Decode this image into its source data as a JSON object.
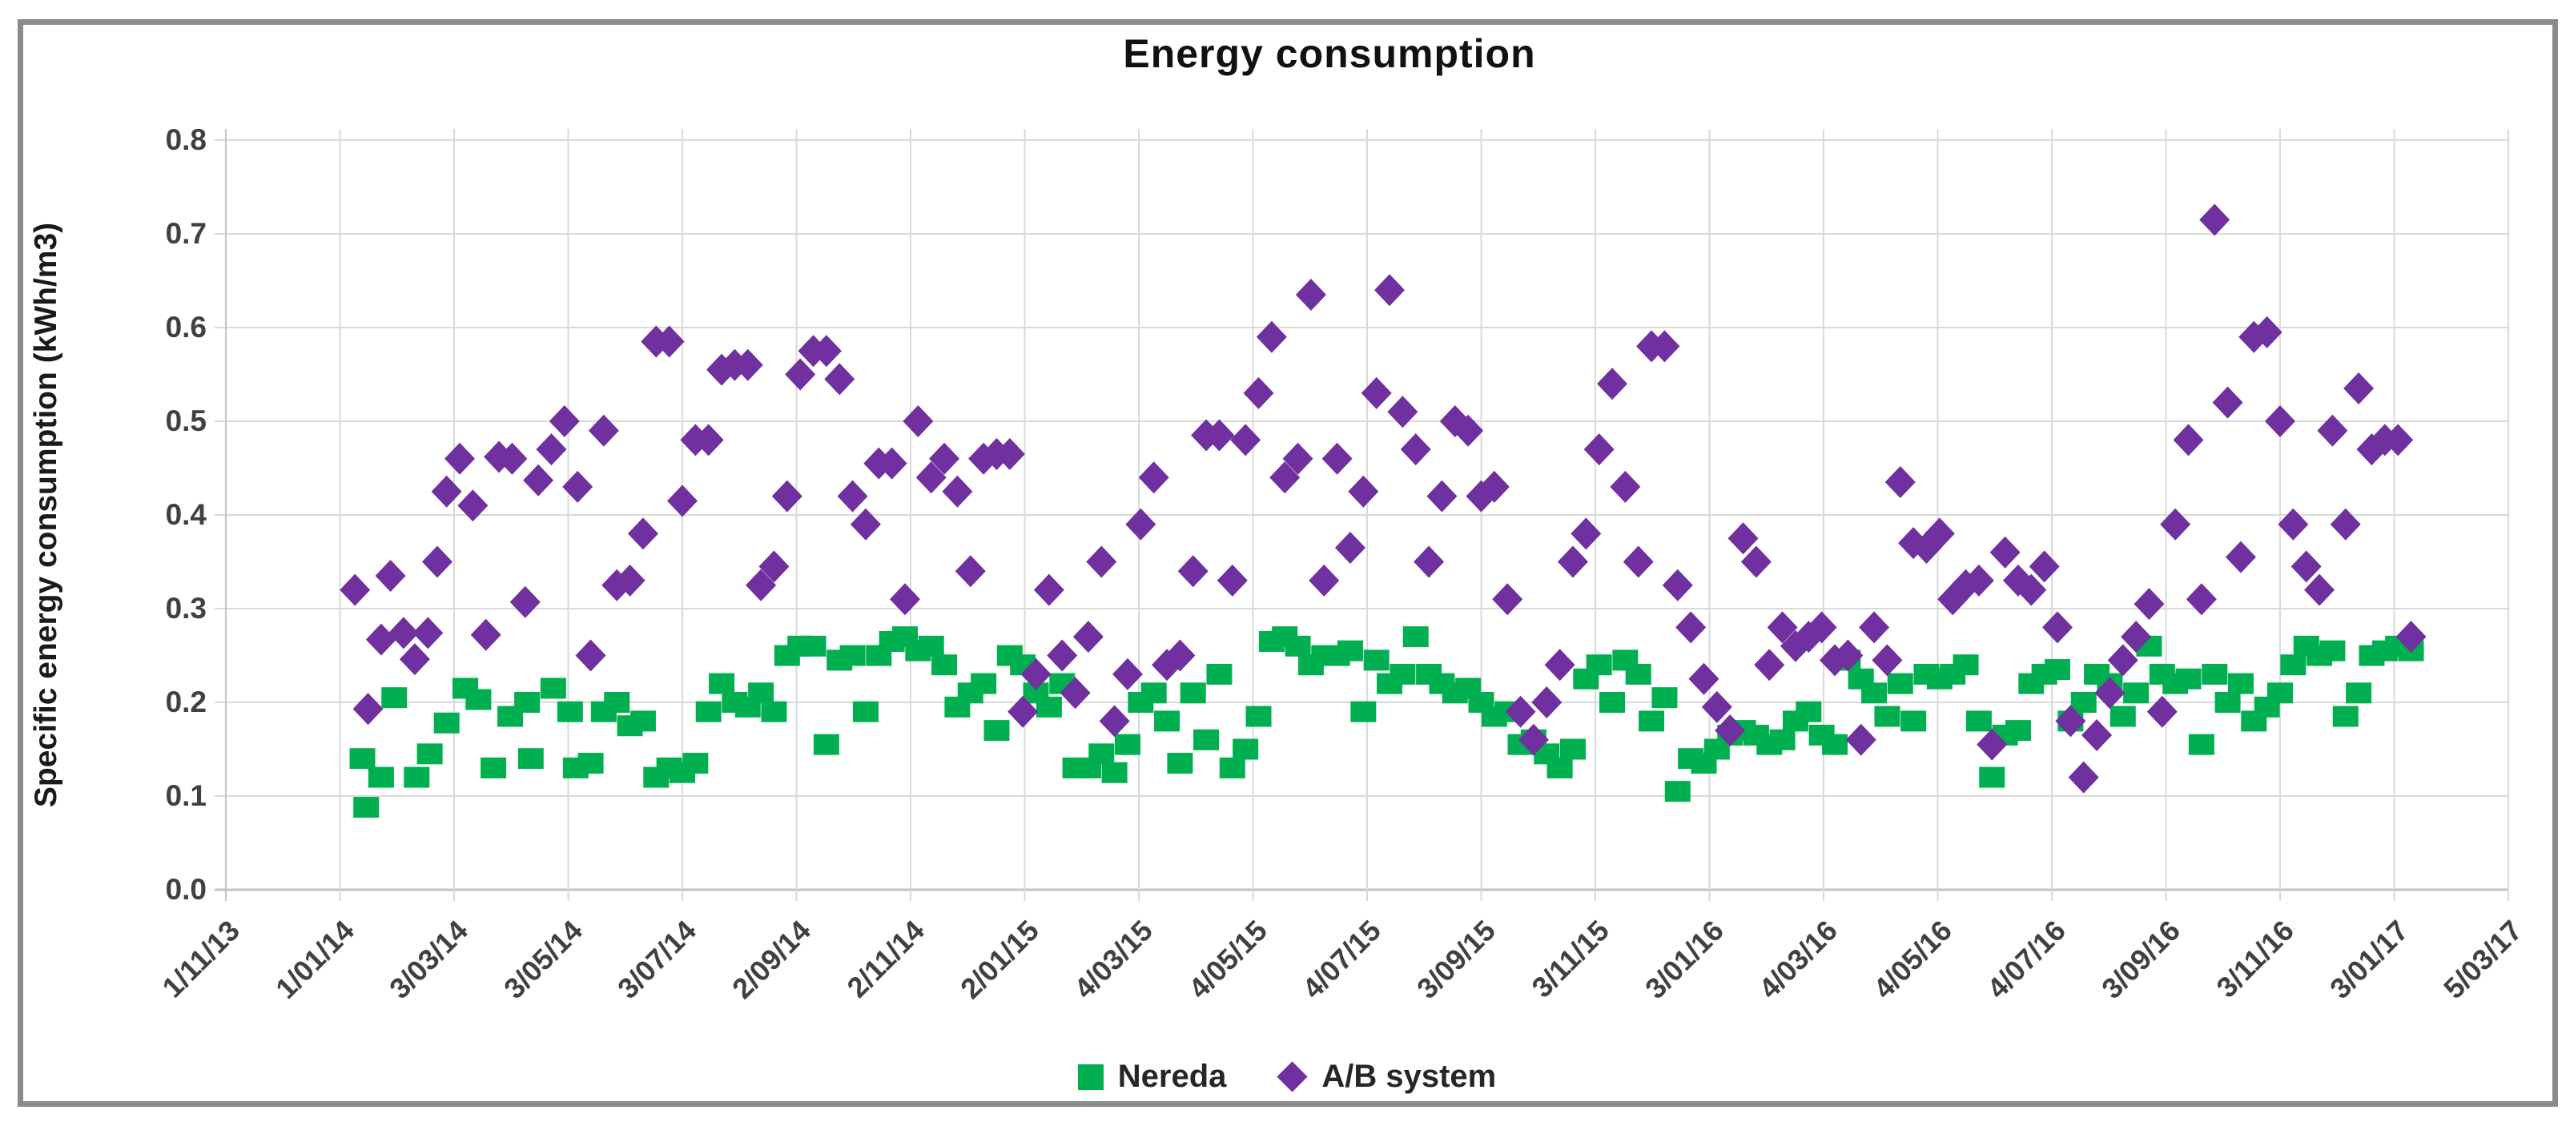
{
  "chart_data": {
    "type": "scatter",
    "title": "Energy consumption",
    "ylabel": "Specific energy consumption (kWh/m3)",
    "xlabel": "",
    "grid": true,
    "legend_position": "bottom",
    "ylim": [
      0.0,
      0.8
    ],
    "y_tick_labels": [
      "0.0",
      "0.1",
      "0.2",
      "0.3",
      "0.4",
      "0.5",
      "0.6",
      "0.7",
      "0.8"
    ],
    "x_tick_labels": [
      "1/11/13",
      "1/01/14",
      "3/03/14",
      "3/05/14",
      "3/07/14",
      "2/09/14",
      "2/11/14",
      "2/01/15",
      "4/03/15",
      "4/05/15",
      "4/07/15",
      "3/09/15",
      "3/11/15",
      "3/01/16",
      "4/03/16",
      "4/05/16",
      "4/07/16",
      "3/09/16",
      "3/11/16",
      "3/01/17",
      "5/03/17"
    ],
    "x_tick_spacing_days": 61,
    "x_axis_unit": "days since 1/11/13",
    "series": [
      {
        "name": "Nereda",
        "marker": "square",
        "color": "#00B050",
        "points": [
          [
            73,
            0.14
          ],
          [
            75,
            0.088
          ],
          [
            83,
            0.12
          ],
          [
            90,
            0.205
          ],
          [
            102,
            0.12
          ],
          [
            109,
            0.145
          ],
          [
            118,
            0.178
          ],
          [
            128,
            0.215
          ],
          [
            135,
            0.203
          ],
          [
            143,
            0.13
          ],
          [
            152,
            0.185
          ],
          [
            161,
            0.2
          ],
          [
            163,
            0.14
          ],
          [
            175,
            0.215
          ],
          [
            184,
            0.19
          ],
          [
            187,
            0.13
          ],
          [
            195,
            0.135
          ],
          [
            202,
            0.19
          ],
          [
            209,
            0.2
          ],
          [
            216,
            0.175
          ],
          [
            223,
            0.18
          ],
          [
            230,
            0.12
          ],
          [
            237,
            0.13
          ],
          [
            244,
            0.125
          ],
          [
            251,
            0.135
          ],
          [
            258,
            0.19
          ],
          [
            265,
            0.22
          ],
          [
            272,
            0.2
          ],
          [
            279,
            0.195
          ],
          [
            286,
            0.21
          ],
          [
            293,
            0.19
          ],
          [
            300,
            0.25
          ],
          [
            307,
            0.26
          ],
          [
            314,
            0.26
          ],
          [
            321,
            0.155
          ],
          [
            328,
            0.245
          ],
          [
            335,
            0.25
          ],
          [
            342,
            0.19
          ],
          [
            349,
            0.25
          ],
          [
            356,
            0.265
          ],
          [
            363,
            0.27
          ],
          [
            370,
            0.255
          ],
          [
            377,
            0.26
          ],
          [
            384,
            0.24
          ],
          [
            391,
            0.195
          ],
          [
            398,
            0.21
          ],
          [
            405,
            0.22
          ],
          [
            412,
            0.17
          ],
          [
            419,
            0.25
          ],
          [
            426,
            0.24
          ],
          [
            433,
            0.21
          ],
          [
            440,
            0.195
          ],
          [
            447,
            0.22
          ],
          [
            454,
            0.13
          ],
          [
            461,
            0.13
          ],
          [
            468,
            0.145
          ],
          [
            475,
            0.125
          ],
          [
            482,
            0.155
          ],
          [
            489,
            0.2
          ],
          [
            496,
            0.21
          ],
          [
            503,
            0.18
          ],
          [
            510,
            0.135
          ],
          [
            517,
            0.21
          ],
          [
            524,
            0.16
          ],
          [
            531,
            0.23
          ],
          [
            538,
            0.13
          ],
          [
            545,
            0.15
          ],
          [
            552,
            0.185
          ],
          [
            559,
            0.265
          ],
          [
            566,
            0.27
          ],
          [
            573,
            0.26
          ],
          [
            580,
            0.24
          ],
          [
            587,
            0.25
          ],
          [
            594,
            0.25
          ],
          [
            601,
            0.255
          ],
          [
            608,
            0.19
          ],
          [
            615,
            0.245
          ],
          [
            622,
            0.22
          ],
          [
            629,
            0.23
          ],
          [
            636,
            0.27
          ],
          [
            643,
            0.23
          ],
          [
            650,
            0.22
          ],
          [
            657,
            0.21
          ],
          [
            664,
            0.215
          ],
          [
            671,
            0.2
          ],
          [
            678,
            0.185
          ],
          [
            685,
            0.19
          ],
          [
            692,
            0.155
          ],
          [
            699,
            0.16
          ],
          [
            706,
            0.145
          ],
          [
            713,
            0.13
          ],
          [
            720,
            0.15
          ],
          [
            727,
            0.225
          ],
          [
            734,
            0.24
          ],
          [
            741,
            0.2
          ],
          [
            748,
            0.245
          ],
          [
            755,
            0.23
          ],
          [
            762,
            0.18
          ],
          [
            769,
            0.205
          ],
          [
            776,
            0.105
          ],
          [
            783,
            0.14
          ],
          [
            790,
            0.135
          ],
          [
            797,
            0.15
          ],
          [
            804,
            0.165
          ],
          [
            811,
            0.17
          ],
          [
            818,
            0.165
          ],
          [
            825,
            0.155
          ],
          [
            832,
            0.16
          ],
          [
            839,
            0.18
          ],
          [
            846,
            0.19
          ],
          [
            853,
            0.165
          ],
          [
            860,
            0.155
          ],
          [
            867,
            0.245
          ],
          [
            874,
            0.225
          ],
          [
            881,
            0.21
          ],
          [
            888,
            0.185
          ],
          [
            895,
            0.22
          ],
          [
            902,
            0.18
          ],
          [
            909,
            0.23
          ],
          [
            916,
            0.225
          ],
          [
            923,
            0.23
          ],
          [
            930,
            0.24
          ],
          [
            937,
            0.18
          ],
          [
            944,
            0.12
          ],
          [
            951,
            0.165
          ],
          [
            958,
            0.17
          ],
          [
            965,
            0.22
          ],
          [
            972,
            0.23
          ],
          [
            979,
            0.235
          ],
          [
            986,
            0.18
          ],
          [
            993,
            0.2
          ],
          [
            1000,
            0.23
          ],
          [
            1007,
            0.22
          ],
          [
            1014,
            0.185
          ],
          [
            1021,
            0.21
          ],
          [
            1028,
            0.26
          ],
          [
            1035,
            0.23
          ],
          [
            1042,
            0.22
          ],
          [
            1049,
            0.225
          ],
          [
            1056,
            0.155
          ],
          [
            1063,
            0.23
          ],
          [
            1070,
            0.2
          ],
          [
            1077,
            0.22
          ],
          [
            1084,
            0.18
          ],
          [
            1091,
            0.195
          ],
          [
            1098,
            0.21
          ],
          [
            1105,
            0.24
          ],
          [
            1112,
            0.26
          ],
          [
            1119,
            0.25
          ],
          [
            1126,
            0.255
          ],
          [
            1133,
            0.185
          ],
          [
            1140,
            0.21
          ],
          [
            1147,
            0.25
          ],
          [
            1154,
            0.255
          ],
          [
            1161,
            0.26
          ],
          [
            1168,
            0.255
          ]
        ]
      },
      {
        "name": "A/B system",
        "marker": "diamond",
        "color": "#7030A0",
        "points": [
          [
            69,
            0.32
          ],
          [
            76,
            0.193
          ],
          [
            83,
            0.267
          ],
          [
            88,
            0.335
          ],
          [
            95,
            0.274
          ],
          [
            101,
            0.246
          ],
          [
            108,
            0.274
          ],
          [
            113,
            0.35
          ],
          [
            118,
            0.425
          ],
          [
            125,
            0.46
          ],
          [
            132,
            0.41
          ],
          [
            139,
            0.272
          ],
          [
            146,
            0.462
          ],
          [
            153,
            0.46
          ],
          [
            160,
            0.307
          ],
          [
            167,
            0.437
          ],
          [
            174,
            0.47
          ],
          [
            181,
            0.5
          ],
          [
            188,
            0.43
          ],
          [
            195,
            0.25
          ],
          [
            202,
            0.49
          ],
          [
            209,
            0.325
          ],
          [
            216,
            0.33
          ],
          [
            223,
            0.38
          ],
          [
            230,
            0.585
          ],
          [
            237,
            0.585
          ],
          [
            244,
            0.415
          ],
          [
            251,
            0.48
          ],
          [
            258,
            0.48
          ],
          [
            265,
            0.555
          ],
          [
            272,
            0.56
          ],
          [
            279,
            0.56
          ],
          [
            286,
            0.325
          ],
          [
            293,
            0.345
          ],
          [
            300,
            0.42
          ],
          [
            307,
            0.55
          ],
          [
            314,
            0.575
          ],
          [
            321,
            0.575
          ],
          [
            328,
            0.545
          ],
          [
            335,
            0.42
          ],
          [
            342,
            0.39
          ],
          [
            349,
            0.455
          ],
          [
            356,
            0.455
          ],
          [
            363,
            0.31
          ],
          [
            370,
            0.5
          ],
          [
            377,
            0.44
          ],
          [
            384,
            0.46
          ],
          [
            391,
            0.425
          ],
          [
            398,
            0.34
          ],
          [
            405,
            0.46
          ],
          [
            412,
            0.465
          ],
          [
            419,
            0.465
          ],
          [
            426,
            0.19
          ],
          [
            433,
            0.23
          ],
          [
            440,
            0.32
          ],
          [
            447,
            0.25
          ],
          [
            454,
            0.21
          ],
          [
            461,
            0.27
          ],
          [
            468,
            0.35
          ],
          [
            475,
            0.18
          ],
          [
            482,
            0.23
          ],
          [
            489,
            0.39
          ],
          [
            496,
            0.44
          ],
          [
            503,
            0.24
          ],
          [
            510,
            0.25
          ],
          [
            517,
            0.34
          ],
          [
            524,
            0.485
          ],
          [
            531,
            0.485
          ],
          [
            538,
            0.33
          ],
          [
            545,
            0.48
          ],
          [
            552,
            0.53
          ],
          [
            559,
            0.59
          ],
          [
            566,
            0.44
          ],
          [
            573,
            0.46
          ],
          [
            580,
            0.635
          ],
          [
            587,
            0.33
          ],
          [
            594,
            0.46
          ],
          [
            601,
            0.365
          ],
          [
            608,
            0.425
          ],
          [
            615,
            0.53
          ],
          [
            622,
            0.64
          ],
          [
            629,
            0.51
          ],
          [
            636,
            0.47
          ],
          [
            643,
            0.35
          ],
          [
            650,
            0.42
          ],
          [
            657,
            0.5
          ],
          [
            664,
            0.49
          ],
          [
            671,
            0.42
          ],
          [
            678,
            0.43
          ],
          [
            685,
            0.31
          ],
          [
            692,
            0.19
          ],
          [
            699,
            0.16
          ],
          [
            706,
            0.2
          ],
          [
            713,
            0.24
          ],
          [
            720,
            0.35
          ],
          [
            727,
            0.38
          ],
          [
            734,
            0.47
          ],
          [
            741,
            0.54
          ],
          [
            748,
            0.43
          ],
          [
            755,
            0.35
          ],
          [
            762,
            0.58
          ],
          [
            769,
            0.58
          ],
          [
            776,
            0.325
          ],
          [
            783,
            0.28
          ],
          [
            790,
            0.225
          ],
          [
            797,
            0.195
          ],
          [
            804,
            0.17
          ],
          [
            811,
            0.375
          ],
          [
            818,
            0.35
          ],
          [
            825,
            0.24
          ],
          [
            832,
            0.28
          ],
          [
            839,
            0.26
          ],
          [
            846,
            0.27
          ],
          [
            853,
            0.28
          ],
          [
            860,
            0.245
          ],
          [
            867,
            0.25
          ],
          [
            874,
            0.16
          ],
          [
            881,
            0.28
          ],
          [
            888,
            0.245
          ],
          [
            895,
            0.435
          ],
          [
            902,
            0.37
          ],
          [
            909,
            0.365
          ],
          [
            916,
            0.38
          ],
          [
            923,
            0.31
          ],
          [
            930,
            0.325
          ],
          [
            937,
            0.33
          ],
          [
            944,
            0.155
          ],
          [
            951,
            0.36
          ],
          [
            958,
            0.33
          ],
          [
            965,
            0.32
          ],
          [
            972,
            0.345
          ],
          [
            979,
            0.28
          ],
          [
            986,
            0.18
          ],
          [
            993,
            0.12
          ],
          [
            1000,
            0.165
          ],
          [
            1007,
            0.21
          ],
          [
            1014,
            0.245
          ],
          [
            1021,
            0.27
          ],
          [
            1028,
            0.305
          ],
          [
            1035,
            0.19
          ],
          [
            1042,
            0.39
          ],
          [
            1049,
            0.48
          ],
          [
            1056,
            0.31
          ],
          [
            1063,
            0.715
          ],
          [
            1070,
            0.52
          ],
          [
            1077,
            0.355
          ],
          [
            1084,
            0.59
          ],
          [
            1091,
            0.595
          ],
          [
            1098,
            0.5
          ],
          [
            1105,
            0.39
          ],
          [
            1112,
            0.345
          ],
          [
            1119,
            0.32
          ],
          [
            1126,
            0.49
          ],
          [
            1133,
            0.39
          ],
          [
            1140,
            0.535
          ],
          [
            1147,
            0.47
          ],
          [
            1154,
            0.48
          ],
          [
            1161,
            0.48
          ],
          [
            1168,
            0.27
          ]
        ]
      }
    ]
  }
}
